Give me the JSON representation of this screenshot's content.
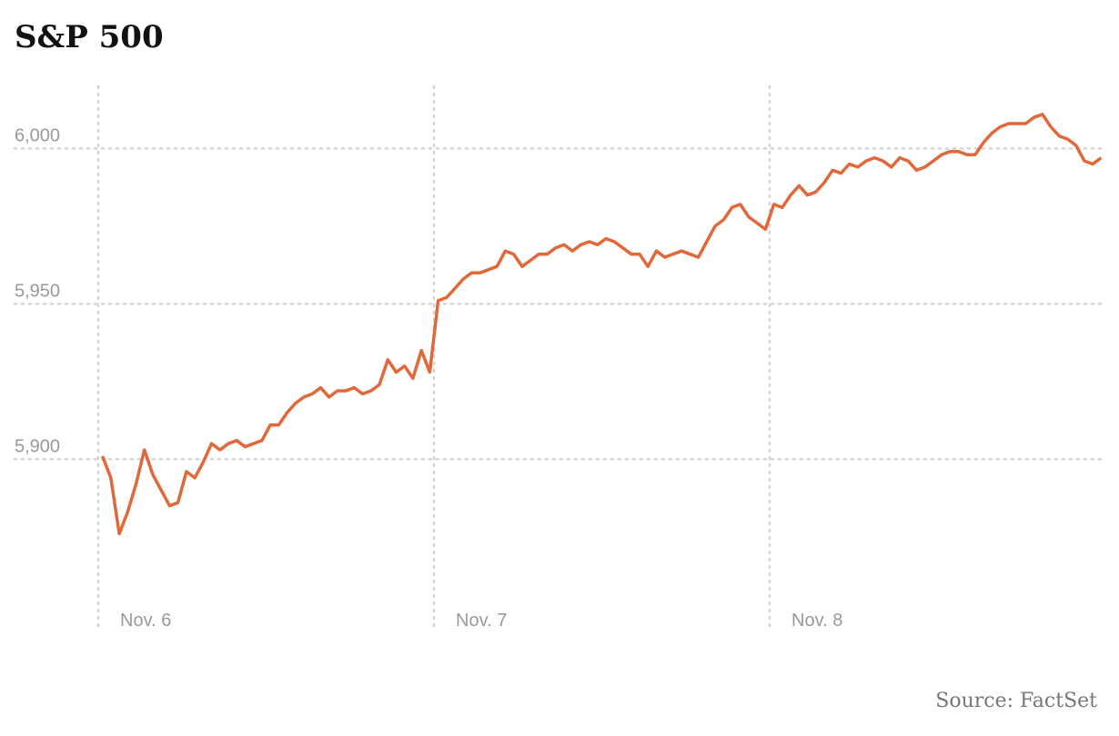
{
  "chart_data": {
    "type": "line",
    "title": "S&P 500",
    "source": "Source: FactSet",
    "color": "#e0683a",
    "values": [
      5901,
      5894,
      5876,
      5883,
      5892,
      5903,
      5895,
      5890,
      5885,
      5886,
      5896,
      5894,
      5899,
      5905,
      5903,
      5905,
      5906,
      5904,
      5905,
      5906,
      5911,
      5911,
      5915,
      5918,
      5920,
      5921,
      5923,
      5920,
      5922,
      5922,
      5923,
      5921,
      5922,
      5924,
      5932,
      5928,
      5930,
      5926,
      5935,
      5928,
      5951,
      5952,
      5955,
      5958,
      5960,
      5960,
      5961,
      5962,
      5967,
      5966,
      5962,
      5964,
      5966,
      5966,
      5968,
      5969,
      5967,
      5969,
      5970,
      5969,
      5971,
      5970,
      5968,
      5966,
      5966,
      5962,
      5967,
      5965,
      5966,
      5967,
      5966,
      5965,
      5970,
      5975,
      5977,
      5981,
      5982,
      5978,
      5976,
      5974,
      5982,
      5981,
      5985,
      5988,
      5985,
      5986,
      5989,
      5993,
      5992,
      5995,
      5994,
      5996,
      5997,
      5996,
      5994,
      5997,
      5996,
      5993,
      5994,
      5996,
      5998,
      5999,
      5999,
      5998,
      5998,
      6002,
      6005,
      6007,
      6008,
      6008,
      6008,
      6010,
      6011,
      6007,
      6004,
      6003,
      6001,
      5996,
      5995,
      5997
    ],
    "xlim": [
      -0.5,
      119.5
    ],
    "xticks": [
      {
        "value": -0.5,
        "label": "Nov. 6"
      },
      {
        "value": 39.5,
        "label": "Nov. 7"
      },
      {
        "value": 79.5,
        "label": "Nov. 8"
      }
    ],
    "ylim": [
      5846,
      6020
    ],
    "yticks": [
      {
        "value": 5900,
        "label": "5,900"
      },
      {
        "value": 5950,
        "label": "5,950"
      },
      {
        "value": 6000,
        "label": "6,000"
      }
    ],
    "grid": true
  }
}
